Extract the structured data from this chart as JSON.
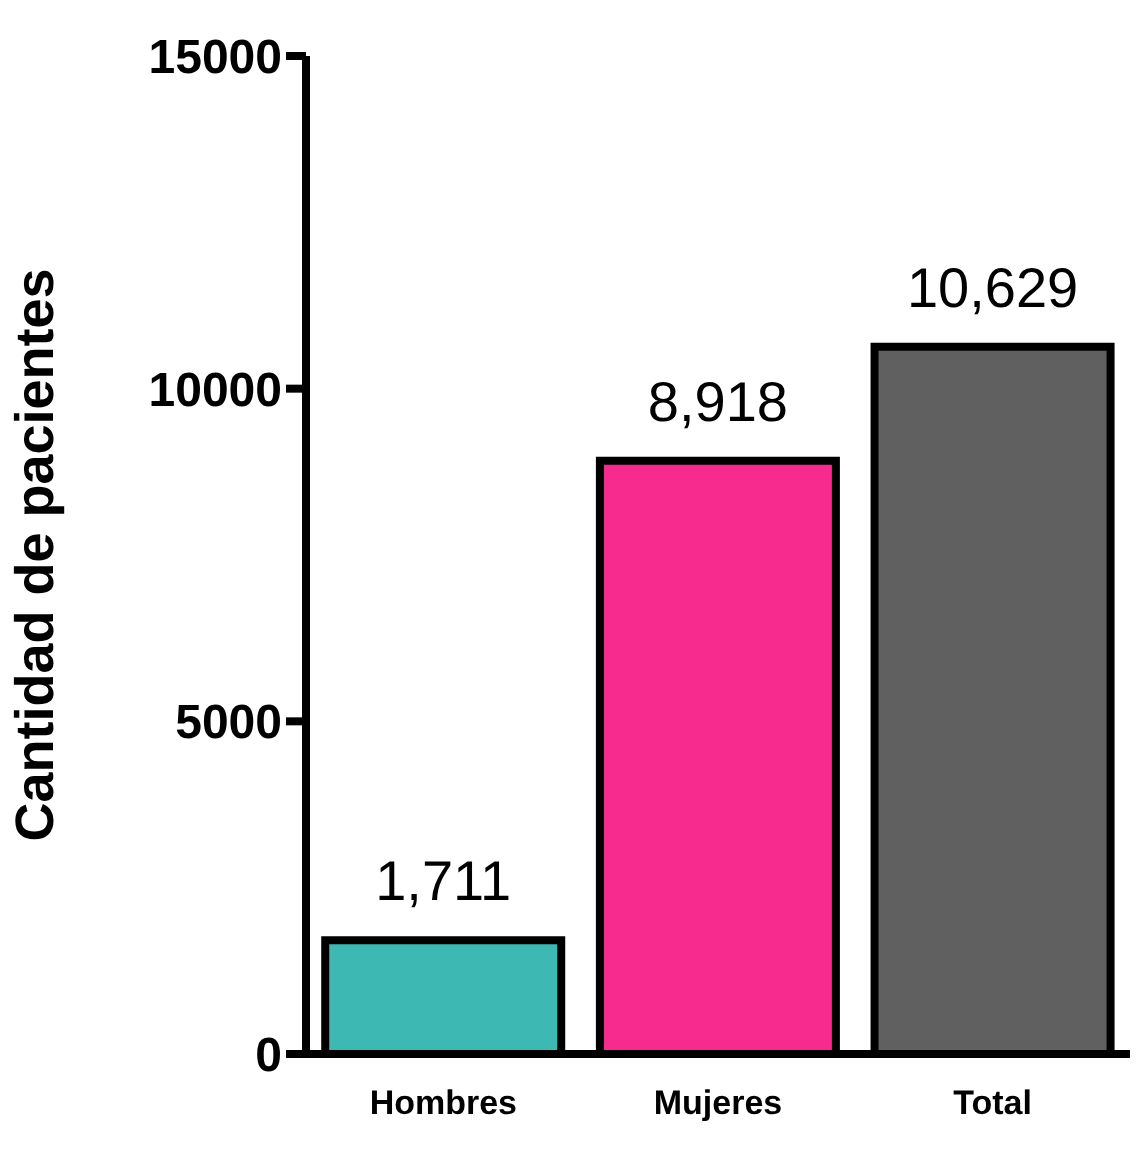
{
  "chart_data": {
    "type": "bar",
    "ylabel": "Cantidad de pacientes",
    "categories": [
      "Hombres",
      "Mujeres",
      "Total"
    ],
    "values": [
      1711,
      8918,
      10629
    ],
    "colors": [
      "#3db8b3",
      "#f72b8d",
      "#606060"
    ],
    "value_labels": [
      "1,711",
      "8,918",
      "10,629"
    ],
    "ylim": [
      0,
      15000
    ],
    "yticks": [
      0,
      5000,
      10000,
      15000
    ],
    "grid": false,
    "legend": false
  }
}
